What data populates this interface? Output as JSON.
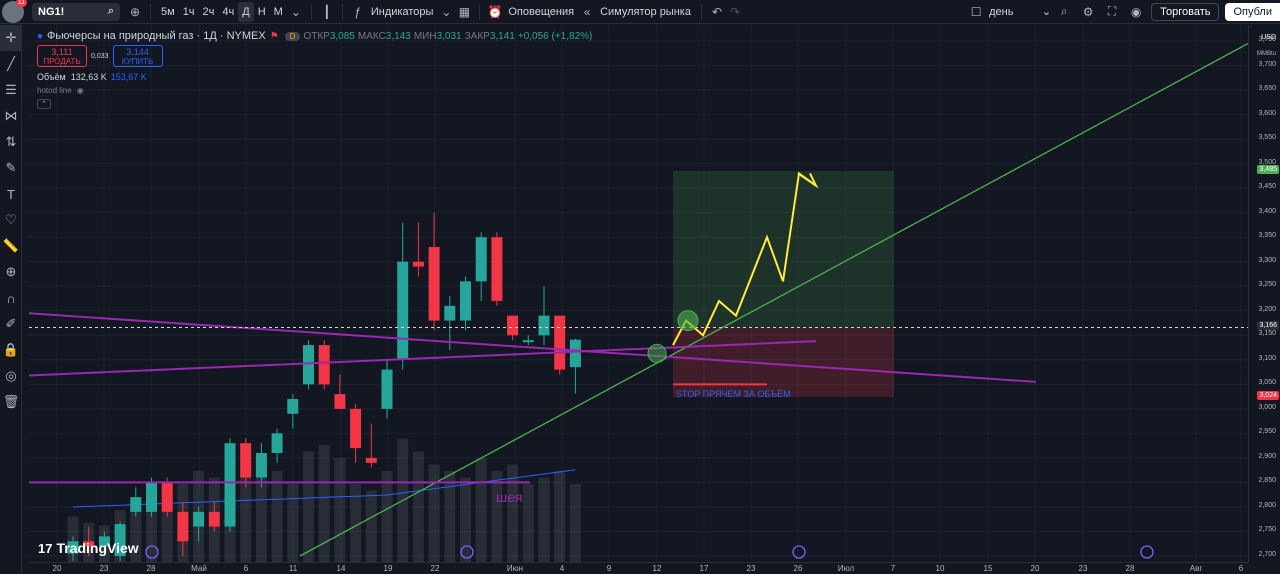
{
  "topbar": {
    "badge": "11",
    "symbol": "NG1!",
    "intervals": [
      "5м",
      "1ч",
      "2ч",
      "4ч",
      "Д",
      "Н",
      "М"
    ],
    "active_interval": "Д",
    "indicators_label": "Индикаторы",
    "alerts_label": "Оповещения",
    "replay_label": "Симулятор рынка",
    "period_label": "день",
    "trade_label": "Торговать",
    "publish_label": "Опубли"
  },
  "legend": {
    "title": "Фьючерсы на природный газ · 1Д · NYMEX",
    "badge": "D",
    "open_label": "ОТКР",
    "open": "3,085",
    "high_label": "МАКС",
    "high": "3,143",
    "low_label": "МИН",
    "low": "3,031",
    "close_label": "ЗАКР",
    "close": "3,141",
    "change": "+0,056 (+1,82%)",
    "sell_price": "3,111",
    "sell_label": "ПРОДАТЬ",
    "spread": "0,033",
    "buy_price": "3,144",
    "buy_label": "КУПИТЬ",
    "volume_label": "Объём",
    "volume": "132,63 K",
    "volume_ma": "153,67 K",
    "hotkey_line": "hotod line"
  },
  "annotations": {
    "stop_text": "STOP ПРЯЧЕМ ЗА ОБЪЁМ",
    "neck_text": "шея"
  },
  "price_axis": {
    "currency": "USD",
    "unit": "MMBtu",
    "ticks": [
      "3,750",
      "3,700",
      "3,650",
      "3,600",
      "3,550",
      "3,500",
      "3,450",
      "3,400",
      "3,350",
      "3,300",
      "3,250",
      "3,200",
      "3,150",
      "3,100",
      "3,050",
      "3,000",
      "2,950",
      "2,900",
      "2,850",
      "2,800",
      "2,750",
      "2,700"
    ],
    "target_tag": "3,485",
    "current_tag": "3,166",
    "stop_tag": "3,024"
  },
  "time_axis": {
    "labels": [
      "20",
      "23",
      "28",
      "Май",
      "6",
      "11",
      "14",
      "19",
      "22",
      "Июн",
      "4",
      "9",
      "12",
      "17",
      "23",
      "26",
      "Июл",
      "7",
      "10",
      "15",
      "20",
      "23",
      "28",
      "Авг",
      "6"
    ]
  },
  "watermark": "TradingView",
  "colors": {
    "up": "#26a69a",
    "down": "#f23645",
    "trend": "#4caf50",
    "purple": "#9c27b0",
    "yellow": "#ffeb3b"
  },
  "chart_data": {
    "type": "candlestick",
    "price_range": [
      2.69,
      3.76
    ],
    "candles": [
      {
        "o": 2.705,
        "h": 2.74,
        "l": 2.69,
        "c": 2.73
      },
      {
        "o": 2.73,
        "h": 2.76,
        "l": 2.7,
        "c": 2.72
      },
      {
        "o": 2.72,
        "h": 2.75,
        "l": 2.7,
        "c": 2.74
      },
      {
        "o": 2.7,
        "h": 2.77,
        "l": 2.69,
        "c": 2.765
      },
      {
        "o": 2.79,
        "h": 2.84,
        "l": 2.78,
        "c": 2.82
      },
      {
        "o": 2.79,
        "h": 2.86,
        "l": 2.78,
        "c": 2.85
      },
      {
        "o": 2.85,
        "h": 2.86,
        "l": 2.78,
        "c": 2.79
      },
      {
        "o": 2.79,
        "h": 2.81,
        "l": 2.7,
        "c": 2.73
      },
      {
        "o": 2.76,
        "h": 2.8,
        "l": 2.73,
        "c": 2.79
      },
      {
        "o": 2.79,
        "h": 2.81,
        "l": 2.75,
        "c": 2.76
      },
      {
        "o": 2.76,
        "h": 2.94,
        "l": 2.75,
        "c": 2.93
      },
      {
        "o": 2.93,
        "h": 2.94,
        "l": 2.84,
        "c": 2.86
      },
      {
        "o": 2.86,
        "h": 2.93,
        "l": 2.84,
        "c": 2.91
      },
      {
        "o": 2.91,
        "h": 2.96,
        "l": 2.89,
        "c": 2.95
      },
      {
        "o": 2.99,
        "h": 3.03,
        "l": 2.96,
        "c": 3.02
      },
      {
        "o": 3.05,
        "h": 3.14,
        "l": 3.04,
        "c": 3.13
      },
      {
        "o": 3.13,
        "h": 3.14,
        "l": 3.04,
        "c": 3.05
      },
      {
        "o": 3.03,
        "h": 3.07,
        "l": 3.0,
        "c": 3.0
      },
      {
        "o": 3.0,
        "h": 3.01,
        "l": 2.89,
        "c": 2.92
      },
      {
        "o": 2.9,
        "h": 2.97,
        "l": 2.88,
        "c": 2.89
      },
      {
        "o": 3.0,
        "h": 3.1,
        "l": 2.98,
        "c": 3.08
      },
      {
        "o": 3.1,
        "h": 3.38,
        "l": 3.08,
        "c": 3.3
      },
      {
        "o": 3.3,
        "h": 3.38,
        "l": 3.27,
        "c": 3.29
      },
      {
        "o": 3.33,
        "h": 3.4,
        "l": 3.16,
        "c": 3.18
      },
      {
        "o": 3.18,
        "h": 3.23,
        "l": 3.12,
        "c": 3.21
      },
      {
        "o": 3.18,
        "h": 3.27,
        "l": 3.16,
        "c": 3.26
      },
      {
        "o": 3.26,
        "h": 3.36,
        "l": 3.22,
        "c": 3.35
      },
      {
        "o": 3.35,
        "h": 3.36,
        "l": 3.21,
        "c": 3.22
      },
      {
        "o": 3.19,
        "h": 3.19,
        "l": 3.14,
        "c": 3.15
      },
      {
        "o": 3.14,
        "h": 3.15,
        "l": 3.13,
        "c": 3.14
      },
      {
        "o": 3.15,
        "h": 3.25,
        "l": 3.13,
        "c": 3.19
      },
      {
        "o": 3.19,
        "h": 3.19,
        "l": 3.07,
        "c": 3.08
      },
      {
        "o": 3.085,
        "h": 3.143,
        "l": 3.031,
        "c": 3.141
      }
    ],
    "volume": [
      0.35,
      0.3,
      0.28,
      0.4,
      0.5,
      0.45,
      0.55,
      0.6,
      0.7,
      0.65,
      0.75,
      0.8,
      0.75,
      0.7,
      0.6,
      0.85,
      0.9,
      0.8,
      0.6,
      0.55,
      0.7,
      0.95,
      0.85,
      0.75,
      0.7,
      0.65,
      0.8,
      0.7,
      0.75,
      0.6,
      0.65,
      0.7,
      0.6
    ]
  }
}
